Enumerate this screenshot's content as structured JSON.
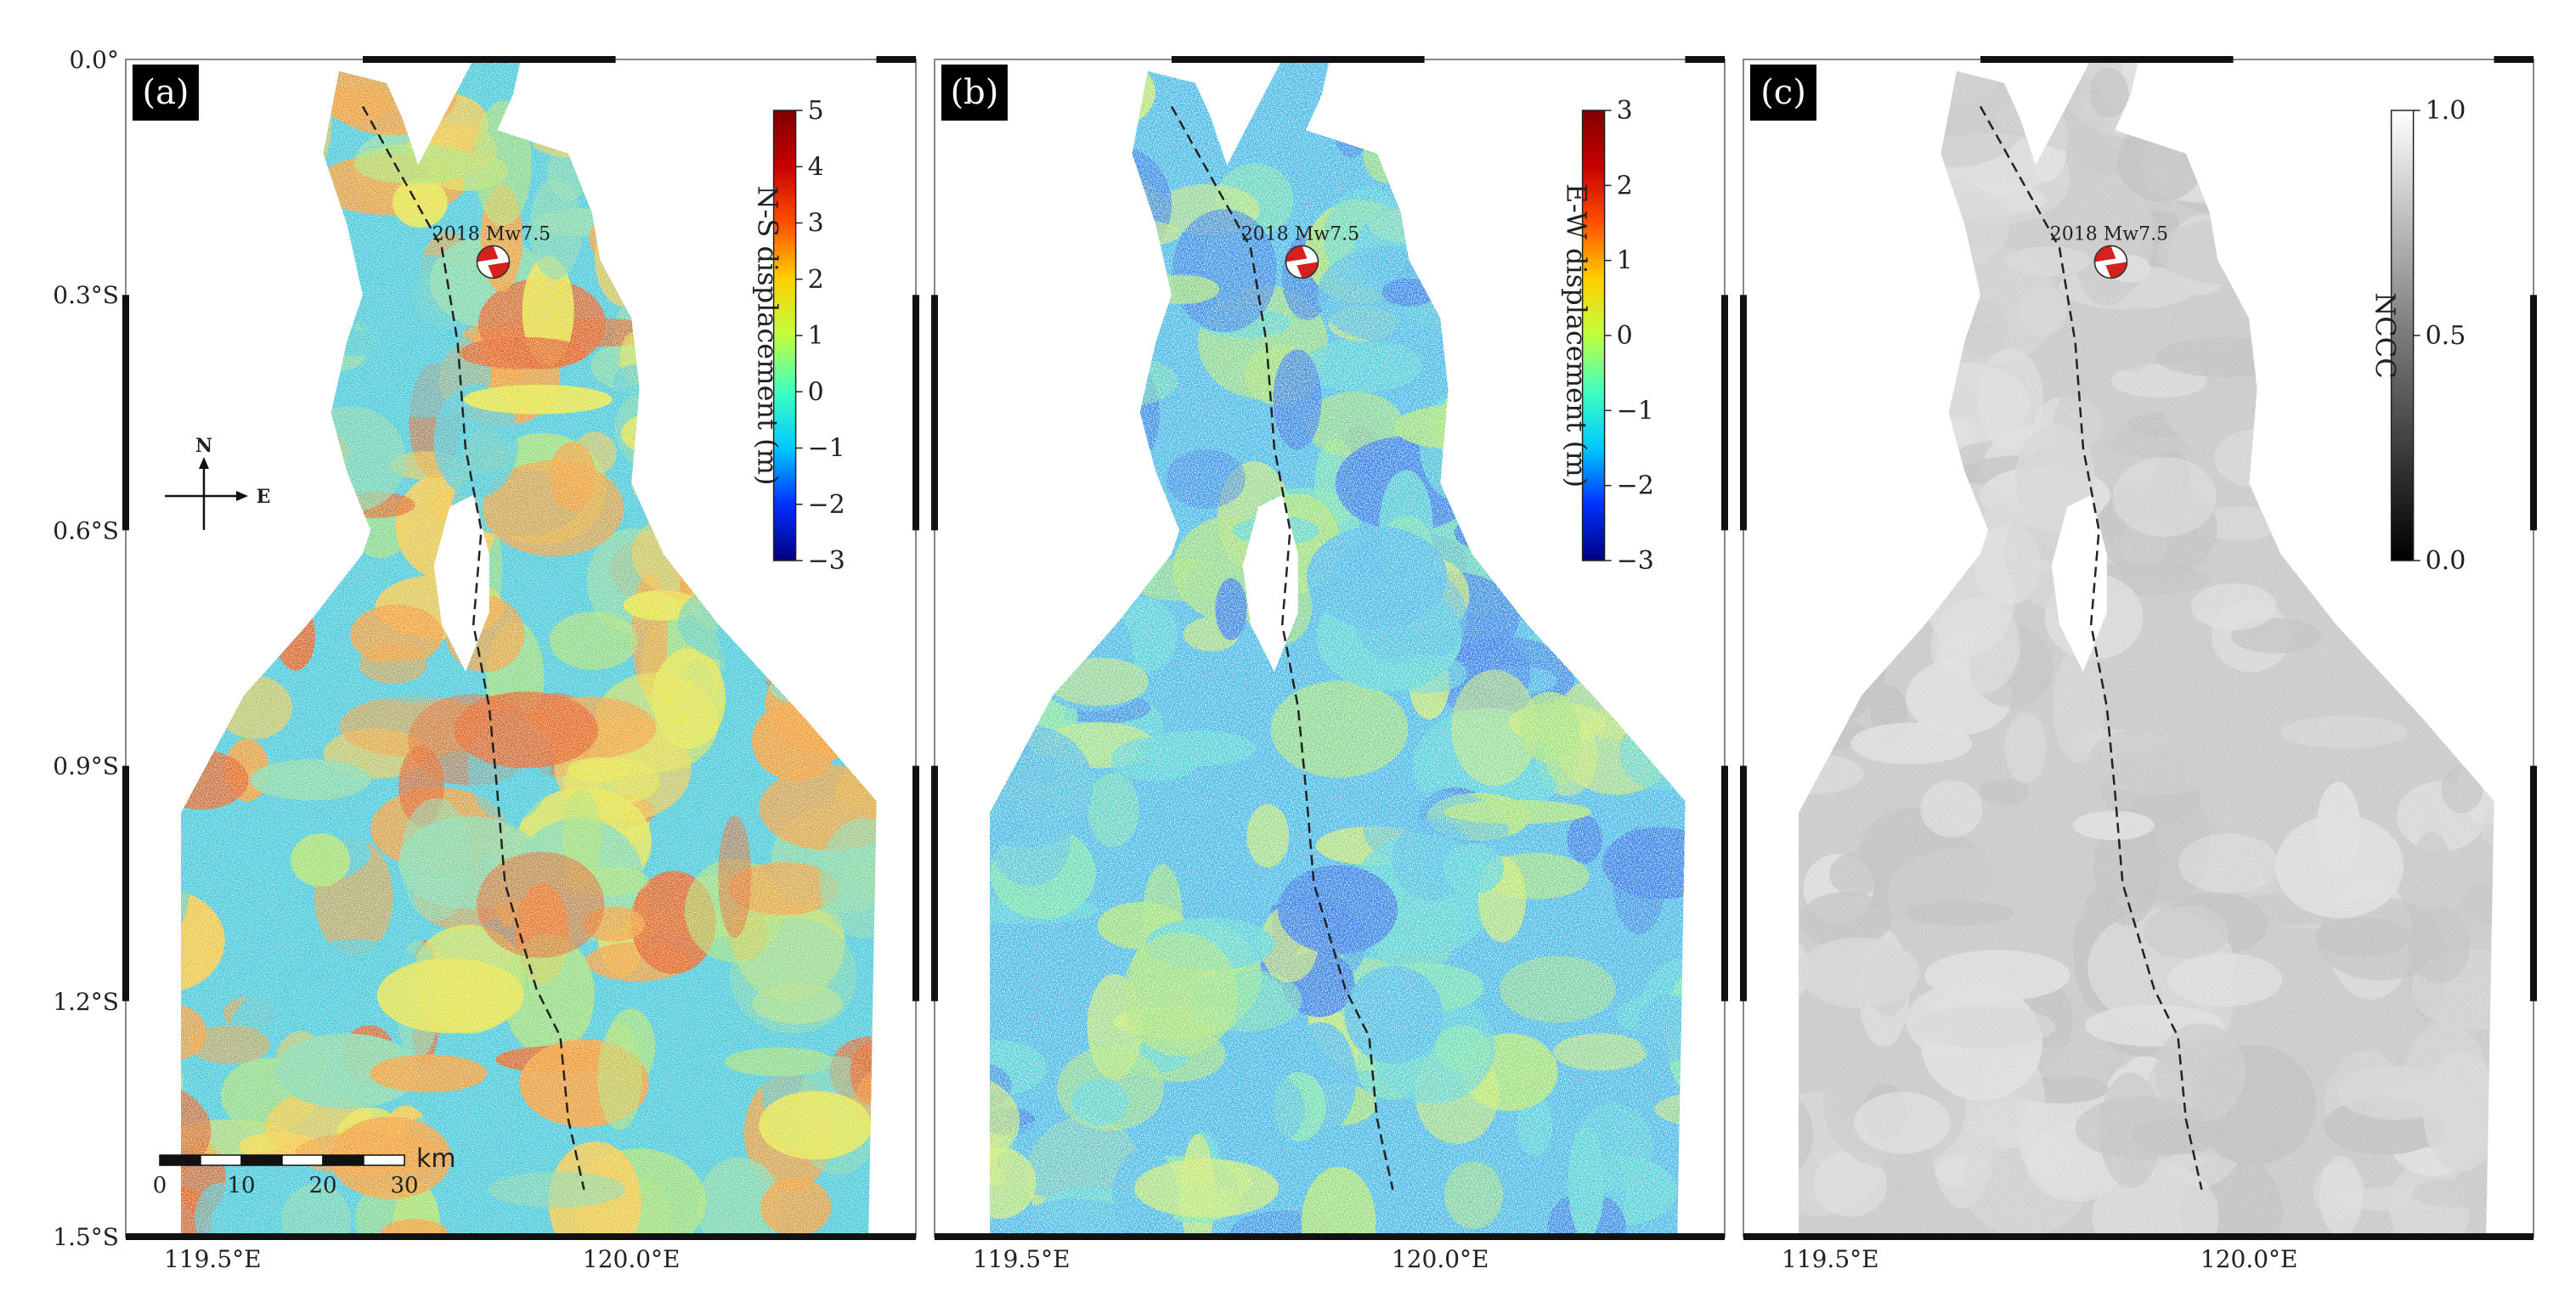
{
  "figure": {
    "y_ticks": [
      "0.0°",
      "0.3°S",
      "0.6°S",
      "0.9°S",
      "1.2°S",
      "1.5°S"
    ],
    "x_ticks": [
      "119.5°E",
      "120.0°E"
    ],
    "event_label": "2018 Mw7.5"
  },
  "panels": [
    {
      "tag": "(a)",
      "colorbar": {
        "title": "N-S displacement (m)",
        "ticks": [
          "5",
          "4",
          "3",
          "2",
          "1",
          "0",
          "−1",
          "−2",
          "−3"
        ],
        "range": [
          -3,
          5
        ],
        "colors": [
          "#00007f",
          "#0030ff",
          "#00c8ff",
          "#40ffc0",
          "#c0ff40",
          "#ffd000",
          "#ff5000",
          "#c80000",
          "#7f0000"
        ]
      },
      "palette": [
        "#46c8d8",
        "#7fd6a6",
        "#a8e067",
        "#e4e340",
        "#f6c53b",
        "#f39a2f",
        "#e25f1f"
      ],
      "scale_bar": {
        "labels": [
          "0",
          "10",
          "20",
          "30"
        ],
        "unit": "km"
      },
      "north_arrow": {
        "n": "N",
        "e": "E"
      }
    },
    {
      "tag": "(b)",
      "colorbar": {
        "title": "E-W displacement (m)",
        "ticks": [
          "3",
          "2",
          "1",
          "0",
          "−1",
          "−2",
          "−3"
        ],
        "range": [
          -3,
          3
        ],
        "colors": [
          "#00007f",
          "#0030ff",
          "#00c8ff",
          "#40ffc0",
          "#c0ff40",
          "#ffd000",
          "#ff5000",
          "#c80000",
          "#7f0000"
        ]
      },
      "palette": [
        "#43b7e6",
        "#4fd1d4",
        "#6ee0a8",
        "#9fe070",
        "#2f7be6",
        "#c8e860"
      ]
    },
    {
      "tag": "(c)",
      "colorbar": {
        "title": "NCCC",
        "ticks": [
          "1.0",
          "0.5",
          "0.0"
        ],
        "range": [
          0,
          1
        ],
        "colors": [
          "#000000",
          "#7a7a7a",
          "#ffffff"
        ]
      },
      "palette": [
        "#c7c7c7",
        "#d3d3d3",
        "#bdbdbd",
        "#dcdcdc"
      ]
    }
  ],
  "colors": {
    "frame": "#111111",
    "fault": "#222222",
    "beachball": "#d62020",
    "tag_bg": "#000000"
  }
}
